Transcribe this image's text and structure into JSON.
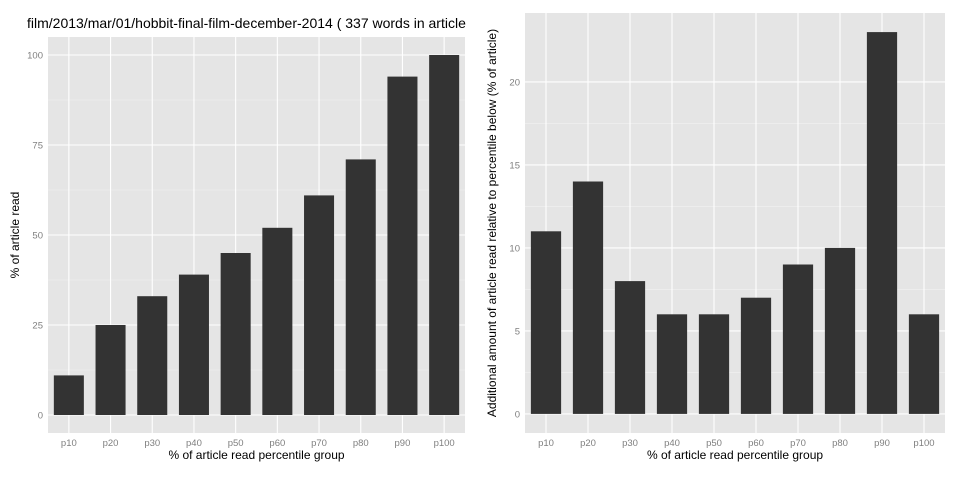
{
  "figure_title": "film/2013/mar/01/hobbit-final-film-december-2014 ( 337 words in article",
  "colors": {
    "panel_background": "#e5e5e5",
    "grid_major": "#ffffff",
    "grid_minor": "#f2f2f2",
    "bar_fill": "#333333",
    "tick_label": "#7f7f7f",
    "axis_title": "#000000"
  },
  "chart_data": [
    {
      "type": "bar",
      "categories": [
        "p10",
        "p20",
        "p30",
        "p40",
        "p50",
        "p60",
        "p70",
        "p80",
        "p90",
        "p100"
      ],
      "values": [
        11,
        25,
        33,
        39,
        45,
        52,
        61,
        71,
        94,
        100
      ],
      "xlabel": "% of article read percentile group",
      "ylabel": "% of article read",
      "ylim": [
        0,
        100
      ],
      "yticks": [
        0,
        25,
        50,
        75,
        100
      ],
      "grid": true,
      "legend": "none"
    },
    {
      "type": "bar",
      "categories": [
        "p10",
        "p20",
        "p30",
        "p40",
        "p50",
        "p60",
        "p70",
        "p80",
        "p90",
        "p100"
      ],
      "values": [
        11,
        14,
        8,
        6,
        6,
        7,
        9,
        10,
        23,
        6
      ],
      "xlabel": "% of article read percentile group",
      "ylabel": "Additional amount of article read relative to percentile below (% of article)",
      "ylim": [
        0,
        23
      ],
      "yticks": [
        0,
        5,
        10,
        15,
        20
      ],
      "grid": true,
      "legend": "none"
    }
  ]
}
